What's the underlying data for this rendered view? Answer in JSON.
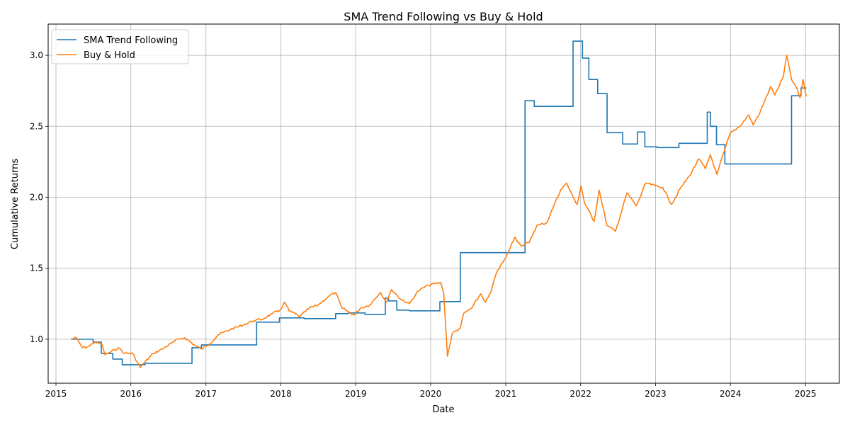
{
  "chart_data": {
    "type": "line",
    "title": "SMA Trend Following vs Buy & Hold",
    "xlabel": "Date",
    "ylabel": "Cumulative Returns",
    "x_type": "date",
    "xlim": [
      "2014-11-24",
      "2025-06-15"
    ],
    "ylim": [
      0.69,
      3.22
    ],
    "xticks": [
      "2015-01-01",
      "2016-01-01",
      "2017-01-01",
      "2018-01-01",
      "2019-01-01",
      "2020-01-01",
      "2021-01-01",
      "2022-01-01",
      "2023-01-01",
      "2024-01-01",
      "2025-01-01"
    ],
    "xtick_labels": [
      "2015",
      "2016",
      "2017",
      "2018",
      "2019",
      "2020",
      "2021",
      "2022",
      "2023",
      "2024",
      "2025"
    ],
    "yticks": [
      1.0,
      1.5,
      2.0,
      2.5,
      3.0
    ],
    "ytick_labels": [
      "1.0",
      "1.5",
      "2.0",
      "2.5",
      "3.0"
    ],
    "grid": true,
    "legend_position": "upper-left",
    "series": [
      {
        "name": "SMA Trend Following",
        "color": "#1f77b4",
        "style": "step",
        "points": [
          [
            "2015-03-15",
            1.0
          ],
          [
            "2015-07-01",
            0.98
          ],
          [
            "2015-08-10",
            0.9
          ],
          [
            "2015-10-05",
            0.86
          ],
          [
            "2015-11-20",
            0.82
          ],
          [
            "2016-03-10",
            0.83
          ],
          [
            "2016-10-25",
            0.94
          ],
          [
            "2016-12-10",
            0.96
          ],
          [
            "2017-09-05",
            1.12
          ],
          [
            "2017-12-25",
            1.15
          ],
          [
            "2018-04-25",
            1.145
          ],
          [
            "2018-09-25",
            1.18
          ],
          [
            "2018-11-25",
            1.185
          ],
          [
            "2019-02-15",
            1.175
          ],
          [
            "2019-05-25",
            1.29
          ],
          [
            "2019-06-10",
            1.27
          ],
          [
            "2019-07-20",
            1.205
          ],
          [
            "2019-09-20",
            1.2
          ],
          [
            "2020-02-15",
            1.265
          ],
          [
            "2020-05-25",
            1.61
          ],
          [
            "2021-04-05",
            2.68
          ],
          [
            "2021-05-20",
            2.64
          ],
          [
            "2021-11-25",
            3.1
          ],
          [
            "2022-01-10",
            2.98
          ],
          [
            "2022-02-10",
            2.83
          ],
          [
            "2022-03-25",
            2.73
          ],
          [
            "2022-05-10",
            2.455
          ],
          [
            "2022-07-25",
            2.375
          ],
          [
            "2022-10-05",
            2.46
          ],
          [
            "2022-11-10",
            2.355
          ],
          [
            "2023-01-10",
            2.35
          ],
          [
            "2023-04-25",
            2.38
          ],
          [
            "2023-09-10",
            2.6
          ],
          [
            "2023-09-25",
            2.5
          ],
          [
            "2023-10-25",
            2.37
          ],
          [
            "2023-12-05",
            2.235
          ],
          [
            "2024-10-25",
            2.715
          ],
          [
            "2024-12-10",
            2.77
          ],
          [
            "2025-01-05",
            2.77
          ]
        ]
      },
      {
        "name": "Buy & Hold",
        "color": "#ff7f0e",
        "style": "line",
        "points": [
          [
            "2015-03-15",
            1.0
          ],
          [
            "2015-04-10",
            1.01
          ],
          [
            "2015-05-10",
            0.94
          ],
          [
            "2015-06-10",
            0.95
          ],
          [
            "2015-07-10",
            0.98
          ],
          [
            "2015-08-15",
            0.96
          ],
          [
            "2015-08-28",
            0.89
          ],
          [
            "2015-09-25",
            0.91
          ],
          [
            "2015-11-01",
            0.94
          ],
          [
            "2015-12-01",
            0.9
          ],
          [
            "2016-01-10",
            0.9
          ],
          [
            "2016-02-15",
            0.8
          ],
          [
            "2016-03-10",
            0.84
          ],
          [
            "2016-04-20",
            0.9
          ],
          [
            "2016-06-01",
            0.93
          ],
          [
            "2016-07-15",
            0.97
          ],
          [
            "2016-08-20",
            1.0
          ],
          [
            "2016-09-20",
            1.01
          ],
          [
            "2016-11-05",
            0.96
          ],
          [
            "2016-12-10",
            0.93
          ],
          [
            "2017-01-20",
            0.97
          ],
          [
            "2017-03-01",
            1.03
          ],
          [
            "2017-05-01",
            1.07
          ],
          [
            "2017-07-01",
            1.1
          ],
          [
            "2017-08-20",
            1.13
          ],
          [
            "2017-10-01",
            1.14
          ],
          [
            "2017-11-20",
            1.18
          ],
          [
            "2017-12-25",
            1.2
          ],
          [
            "2018-01-20",
            1.26
          ],
          [
            "2018-02-10",
            1.2
          ],
          [
            "2018-04-05",
            1.16
          ],
          [
            "2018-05-20",
            1.22
          ],
          [
            "2018-07-01",
            1.24
          ],
          [
            "2018-08-20",
            1.3
          ],
          [
            "2018-09-25",
            1.33
          ],
          [
            "2018-10-25",
            1.22
          ],
          [
            "2018-12-24",
            1.17
          ],
          [
            "2019-01-25",
            1.22
          ],
          [
            "2019-03-10",
            1.24
          ],
          [
            "2019-04-30",
            1.33
          ],
          [
            "2019-06-01",
            1.26
          ],
          [
            "2019-06-25",
            1.35
          ],
          [
            "2019-08-10",
            1.28
          ],
          [
            "2019-09-20",
            1.25
          ],
          [
            "2019-11-01",
            1.34
          ],
          [
            "2019-12-20",
            1.38
          ],
          [
            "2020-02-19",
            1.4
          ],
          [
            "2020-03-05",
            1.32
          ],
          [
            "2020-03-23",
            0.88
          ],
          [
            "2020-04-15",
            1.04
          ],
          [
            "2020-05-25",
            1.08
          ],
          [
            "2020-06-10",
            1.18
          ],
          [
            "2020-07-20",
            1.22
          ],
          [
            "2020-09-01",
            1.32
          ],
          [
            "2020-09-25",
            1.26
          ],
          [
            "2020-10-20",
            1.33
          ],
          [
            "2020-11-20",
            1.48
          ],
          [
            "2020-12-31",
            1.57
          ],
          [
            "2021-02-15",
            1.72
          ],
          [
            "2021-03-15",
            1.66
          ],
          [
            "2021-04-25",
            1.68
          ],
          [
            "2021-06-01",
            1.8
          ],
          [
            "2021-07-20",
            1.82
          ],
          [
            "2021-08-20",
            1.93
          ],
          [
            "2021-09-25",
            2.05
          ],
          [
            "2021-10-25",
            2.1
          ],
          [
            "2021-11-25",
            2.0
          ],
          [
            "2021-12-15",
            1.95
          ],
          [
            "2022-01-03",
            2.08
          ],
          [
            "2022-01-20",
            1.96
          ],
          [
            "2022-03-08",
            1.83
          ],
          [
            "2022-04-01",
            2.05
          ],
          [
            "2022-05-10",
            1.8
          ],
          [
            "2022-06-20",
            1.76
          ],
          [
            "2022-08-15",
            2.03
          ],
          [
            "2022-09-30",
            1.94
          ],
          [
            "2022-11-15",
            2.1
          ],
          [
            "2022-12-30",
            2.08
          ],
          [
            "2023-02-05",
            2.07
          ],
          [
            "2023-03-20",
            1.95
          ],
          [
            "2023-05-01",
            2.06
          ],
          [
            "2023-06-15",
            2.15
          ],
          [
            "2023-07-31",
            2.27
          ],
          [
            "2023-09-01",
            2.2
          ],
          [
            "2023-09-25",
            2.3
          ],
          [
            "2023-10-27",
            2.16
          ],
          [
            "2023-12-01",
            2.32
          ],
          [
            "2023-12-31",
            2.45
          ],
          [
            "2024-02-15",
            2.5
          ],
          [
            "2024-03-31",
            2.58
          ],
          [
            "2024-04-20",
            2.51
          ],
          [
            "2024-05-25",
            2.6
          ],
          [
            "2024-07-15",
            2.78
          ],
          [
            "2024-08-05",
            2.72
          ],
          [
            "2024-09-15",
            2.85
          ],
          [
            "2024-10-01",
            3.0
          ],
          [
            "2024-10-25",
            2.83
          ],
          [
            "2024-11-15",
            2.78
          ],
          [
            "2024-12-05",
            2.7
          ],
          [
            "2024-12-20",
            2.83
          ],
          [
            "2025-01-05",
            2.71
          ]
        ]
      }
    ]
  }
}
